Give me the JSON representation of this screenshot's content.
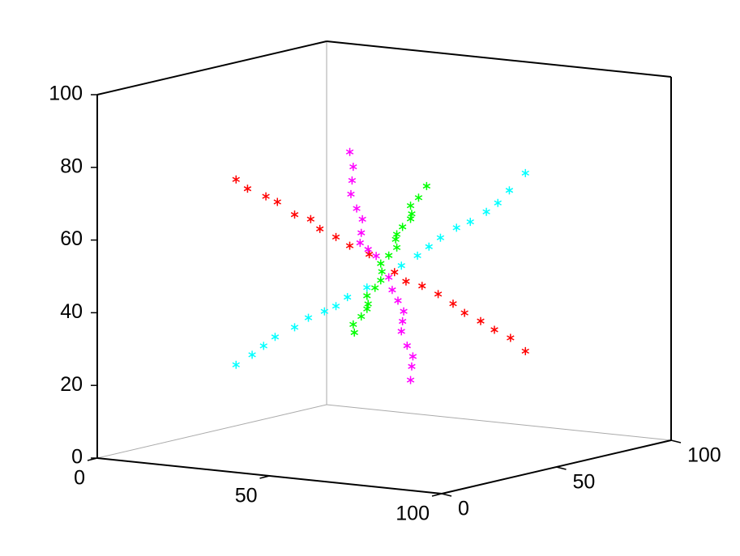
{
  "chart_data": {
    "type": "scatter3d",
    "xlim": [
      0,
      100
    ],
    "ylim": [
      0,
      100
    ],
    "zlim": [
      0,
      100
    ],
    "xticks": [
      0,
      50,
      100
    ],
    "yticks": [
      0,
      50,
      100
    ],
    "zticks": [
      0,
      20,
      40,
      60,
      80,
      100
    ],
    "series": [
      {
        "color": "#ff0000",
        "x": [
          7,
          11,
          15,
          19,
          24,
          28,
          32,
          36,
          40,
          45,
          53,
          57,
          61,
          65,
          70,
          74,
          78,
          82,
          86,
          91
        ],
        "y": [
          50,
          49,
          51,
          50,
          50,
          51,
          49,
          50,
          50,
          51,
          50,
          49,
          50,
          51,
          50,
          49,
          50,
          50,
          51,
          50
        ],
        "z": [
          70,
          68,
          66,
          65,
          62,
          61,
          59,
          57,
          55,
          53,
          49,
          47,
          46,
          44,
          42,
          40,
          38,
          36,
          34,
          31
        ]
      },
      {
        "color": "#00ffff",
        "x": [
          7,
          11,
          15,
          19,
          24,
          28,
          32,
          36,
          40,
          45,
          55,
          59,
          63,
          67,
          71,
          75,
          79,
          83,
          87,
          91
        ],
        "y": [
          50,
          51,
          50,
          49,
          50,
          50,
          51,
          50,
          49,
          50,
          50,
          51,
          50,
          49,
          50,
          50,
          51,
          50,
          49,
          50
        ],
        "z": [
          19,
          22,
          25,
          28,
          31,
          34,
          36,
          38,
          41,
          44,
          51,
          54,
          57,
          60,
          63,
          65,
          68,
          71,
          75,
          80
        ]
      },
      {
        "color": "#ff00ff",
        "x": [
          50,
          51,
          50,
          49,
          50,
          51,
          50,
          49,
          50,
          51,
          50,
          49,
          50,
          51,
          50,
          49,
          50,
          51,
          50,
          49
        ],
        "y": [
          35,
          35,
          36,
          37,
          38,
          39,
          40,
          41,
          43,
          45,
          52,
          55,
          56,
          57,
          58,
          59,
          60,
          61,
          62,
          63
        ],
        "z": [
          84,
          80,
          76,
          72,
          68,
          65,
          61,
          58,
          56,
          54,
          47,
          43,
          40,
          37,
          34,
          31,
          27,
          24,
          21,
          17
        ]
      },
      {
        "color": "#00ff00",
        "x": [
          50,
          49,
          50,
          51,
          50,
          49,
          50,
          51,
          50,
          49,
          50,
          51,
          50,
          49,
          50,
          51,
          50,
          49,
          50,
          51
        ],
        "y": [
          37,
          38,
          40,
          41,
          43,
          44,
          46,
          47,
          49,
          50,
          52,
          54,
          55,
          57,
          58,
          60,
          62,
          63,
          65,
          67
        ],
        "z": [
          34,
          36,
          38,
          40,
          41,
          43,
          45,
          47,
          49,
          51,
          53,
          55,
          57,
          58,
          60,
          62,
          63,
          65,
          67,
          70
        ]
      }
    ]
  }
}
